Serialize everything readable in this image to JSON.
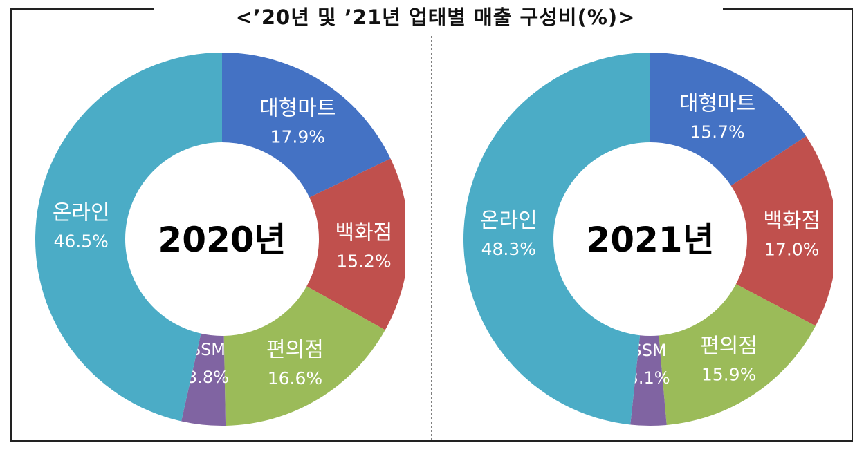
{
  "title": "<’20년 및 ’21년 업태별 매출 구성비(%)>",
  "colors": {
    "대형마트": "#4472C4",
    "백화점": "#C0504D",
    "편의점": "#9BBB59",
    "SSM": "#8064A2",
    "온라인": "#4BACC6"
  },
  "chart_data": [
    {
      "type": "pie",
      "variant": "donut",
      "center_label": "2020년",
      "slices": [
        {
          "name": "대형마트",
          "value": 17.9,
          "value_label": "17.9%"
        },
        {
          "name": "백화점",
          "value": 15.2,
          "value_label": "15.2%"
        },
        {
          "name": "편의점",
          "value": 16.6,
          "value_label": "16.6%"
        },
        {
          "name": "SSM",
          "value": 3.8,
          "value_label": "3.8%"
        },
        {
          "name": "온라인",
          "value": 46.5,
          "value_label": "46.5%"
        }
      ]
    },
    {
      "type": "pie",
      "variant": "donut",
      "center_label": "2021년",
      "slices": [
        {
          "name": "대형마트",
          "value": 15.7,
          "value_label": "15.7%"
        },
        {
          "name": "백화점",
          "value": 17.0,
          "value_label": "17.0%"
        },
        {
          "name": "편의점",
          "value": 15.9,
          "value_label": "15.9%"
        },
        {
          "name": "SSM",
          "value": 3.1,
          "value_label": "3.1%"
        },
        {
          "name": "온라인",
          "value": 48.3,
          "value_label": "48.3%"
        }
      ]
    }
  ]
}
